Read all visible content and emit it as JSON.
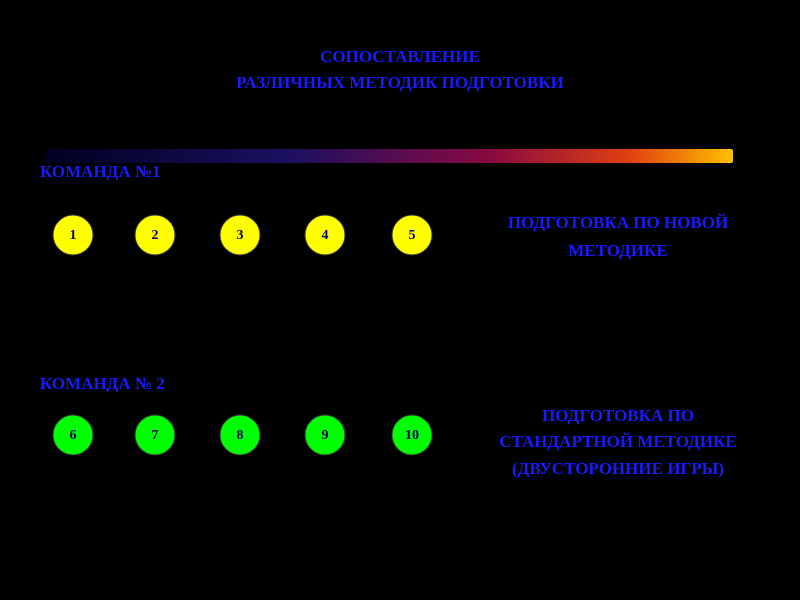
{
  "title": [
    "СОПОСТАВЛЕНИЕ",
    "РАЗЛИЧНЫХ МЕТОДИК ПОДГОТОВКИ"
  ],
  "teams": [
    {
      "label": "КОМАНДА №1",
      "members": [
        "1",
        "2",
        "3",
        "4",
        "5"
      ],
      "method": [
        "ПОДГОТОВКА ПО НОВОЙ",
        "МЕТОДИКЕ"
      ]
    },
    {
      "label": "КОМАНДА № 2",
      "members": [
        "6",
        "7",
        "8",
        "9",
        "10"
      ],
      "method": [
        "ПОДГОТОВКА ПО",
        "СТАНДАРТНОЙ МЕТОДИКЕ",
        "(ДВУСТОРОННИЕ ИГРЫ)"
      ]
    }
  ]
}
